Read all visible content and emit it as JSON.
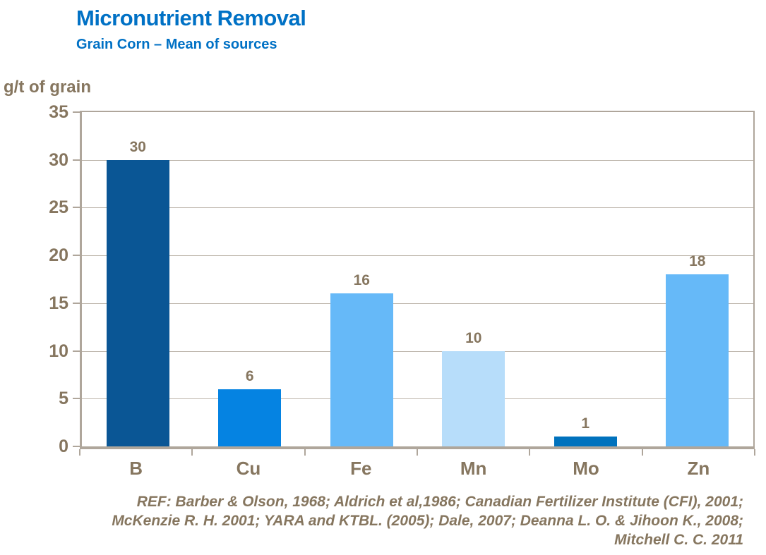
{
  "header": {
    "title": "Micronutrient Removal",
    "subtitle": "Grain Corn – Mean of sources"
  },
  "chart_data": {
    "type": "bar",
    "title": "Micronutrient Removal",
    "subtitle": "Grain Corn – Mean of sources",
    "ylabel": "g/t of grain",
    "xlabel": "",
    "categories": [
      "B",
      "Cu",
      "Fe",
      "Mn",
      "Mo",
      "Zn"
    ],
    "values": [
      30,
      6,
      16,
      10,
      1,
      18
    ],
    "ylim": [
      0,
      35
    ],
    "ytick_step": 5,
    "grid": true,
    "legend": "none",
    "bar_colors": [
      "#0A5695",
      "#0583E2",
      "#66B9F8",
      "#B7DDFA",
      "#0072BD",
      "#66B9F8"
    ]
  },
  "colors": {
    "title_blue": "#0071C5",
    "text_brown": "#86765F",
    "axis_line": "#AFA69B",
    "gridline": "#BDB5AB",
    "background": "#FFFFFF"
  },
  "reference": {
    "lines": [
      "REF: Barber & Olson, 1968; Aldrich et al,1986; Canadian Fertilizer Institute (CFI), 2001;",
      "McKenzie R. H. 2001; YARA and KTBL. (2005); Dale, 2007; Deanna L. O. & Jihoon K., 2008;",
      "Mitchell C. C. 2011"
    ]
  }
}
